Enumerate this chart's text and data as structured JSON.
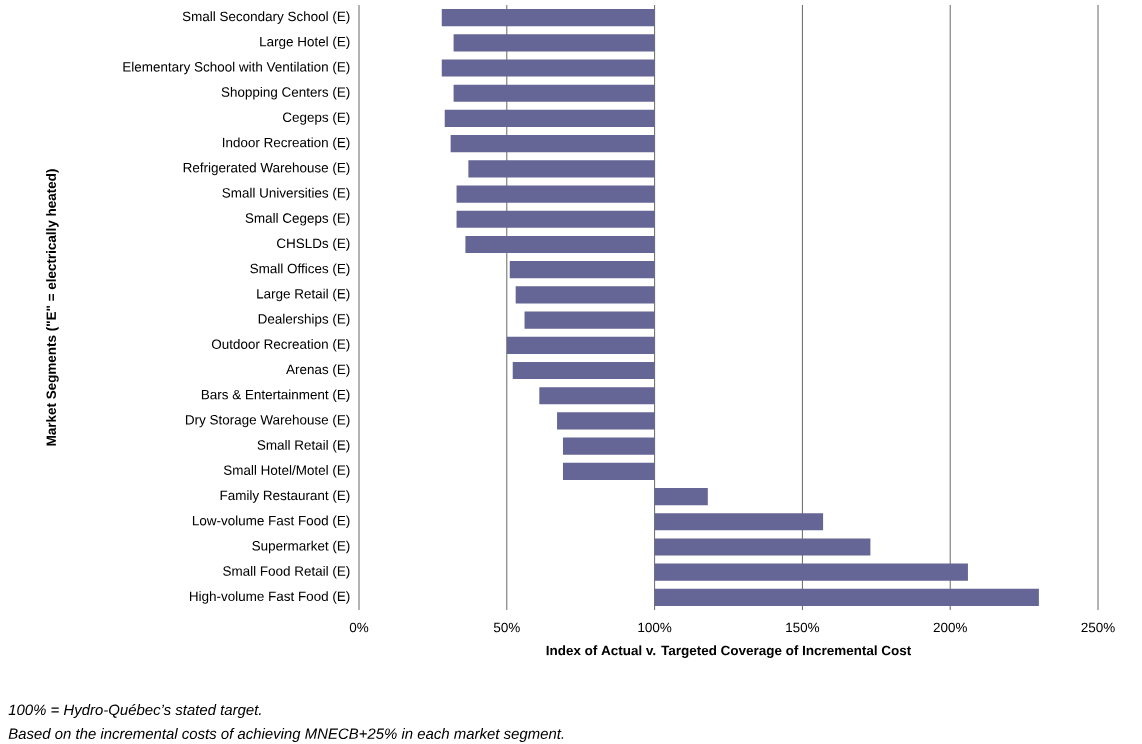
{
  "chart_data": {
    "type": "bar",
    "orientation": "horizontal",
    "categories": [
      "Small Secondary School (E)",
      "Large Hotel (E)",
      "Elementary School with Ventilation (E)",
      "Shopping Centers (E)",
      "Cegeps (E)",
      "Indoor Recreation (E)",
      "Refrigerated Warehouse (E)",
      "Small Universities (E)",
      "Small Cegeps (E)",
      "CHSLDs (E)",
      "Small Offices (E)",
      "Large Retail (E)",
      "Dealerships (E)",
      "Outdoor Recreation (E)",
      "Arenas (E)",
      "Bars & Entertainment (E)",
      "Dry Storage Warehouse (E)",
      "Small Retail (E)",
      "Small Hotel/Motel (E)",
      "Family Restaurant (E)",
      "Low-volume Fast Food (E)",
      "Supermarket (E)",
      "Small Food Retail (E)",
      "High-volume Fast Food (E)"
    ],
    "base": [
      100,
      100,
      100,
      100,
      100,
      100,
      100,
      100,
      100,
      100,
      100,
      100,
      100,
      100,
      100,
      100,
      100,
      100,
      100,
      100,
      100,
      100,
      100,
      100
    ],
    "values": [
      -72,
      -68,
      -72,
      -68,
      -71,
      -69,
      -63,
      -67,
      -67,
      -64,
      -49,
      -47,
      -44,
      -50,
      -48,
      -39,
      -33,
      -31,
      -31,
      18,
      57,
      73,
      106,
      130
    ],
    "color": "#656596",
    "xlim": [
      0,
      250
    ],
    "xticks": [
      {
        "value": 0,
        "label": "0%"
      },
      {
        "value": 50,
        "label": "50%"
      },
      {
        "value": 100,
        "label": "100%"
      },
      {
        "value": 150,
        "label": "150%"
      },
      {
        "value": 200,
        "label": "200%"
      },
      {
        "value": 250,
        "label": "250%"
      }
    ],
    "grid": "x",
    "xlabel": "Index of Actual v. Targeted Coverage of Incremental Cost",
    "ylabel": "Market Segments (\"E\" = electrically heated)",
    "annotations": [
      "100% = Hydro-Québec’s stated target.",
      "Based on the incremental costs of achieving MNECB+25% in each market segment."
    ]
  }
}
